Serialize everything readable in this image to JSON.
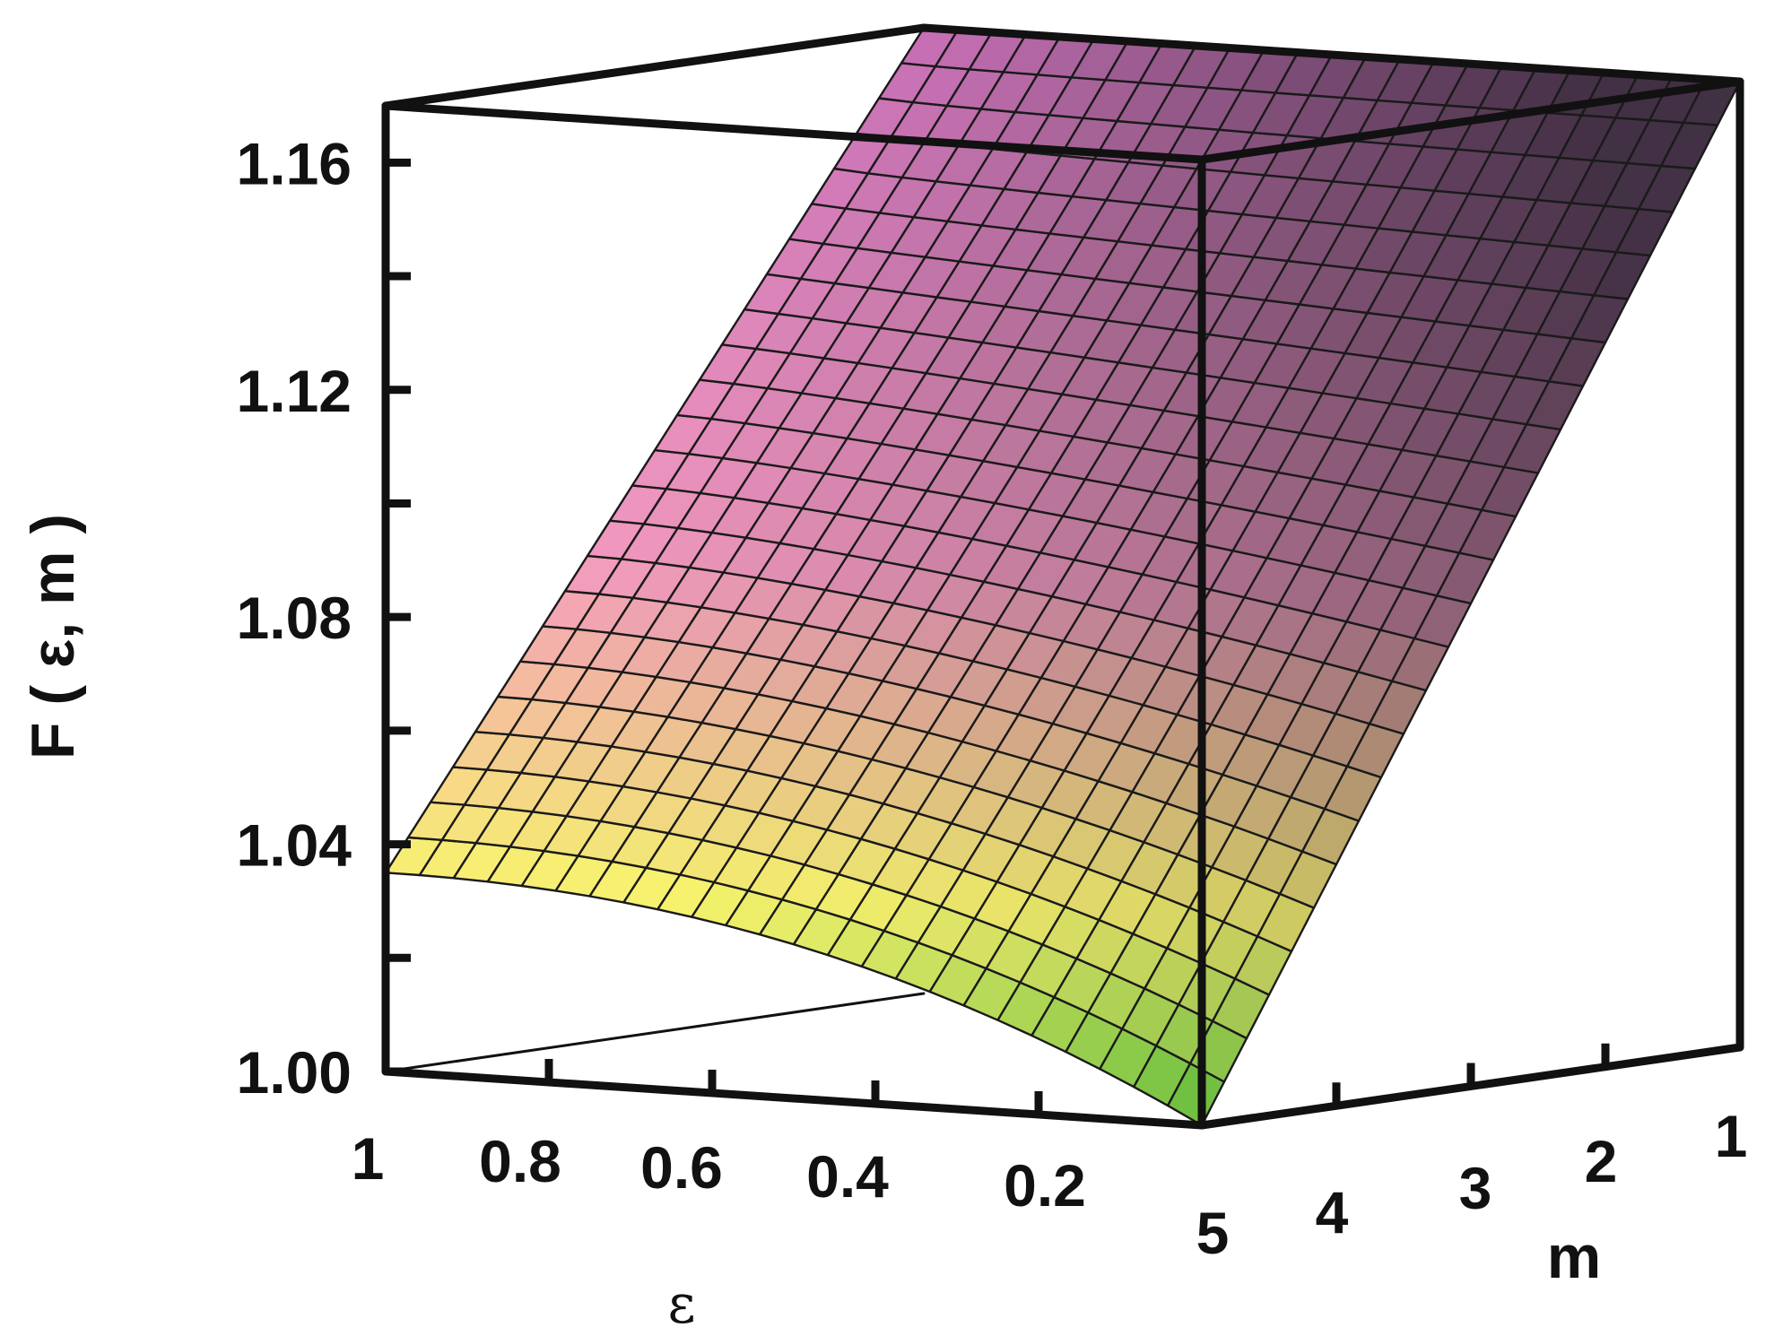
{
  "chart_data": {
    "type": "surface3d",
    "title": "",
    "zlabel": "F ( ε, m )",
    "xlabel": "ε",
    "ylabel": "m",
    "x_ticks": [
      "1",
      "0.8",
      "0.6",
      "0.4",
      "0.2"
    ],
    "x_tick_values": [
      1,
      0.8,
      0.6,
      0.4,
      0.2
    ],
    "y_ticks": [
      "5",
      "4",
      "3",
      "2",
      "1"
    ],
    "y_tick_values": [
      5,
      4,
      3,
      2,
      1
    ],
    "z_ticks": [
      "1.00",
      "1.04",
      "1.08",
      "1.12",
      "1.16"
    ],
    "z_tick_values": [
      1.0,
      1.04,
      1.08,
      1.12,
      1.16
    ],
    "xlim": [
      0,
      1
    ],
    "ylim": [
      1,
      5
    ],
    "zlim": [
      1.0,
      1.17
    ],
    "grid_steps": 24,
    "surface_samples": [
      {
        "epsilon": 0,
        "m": 1,
        "F": 1.17
      },
      {
        "epsilon": 1,
        "m": 1,
        "F": 1.17
      },
      {
        "epsilon": 0,
        "m": 5,
        "F": 1.0
      },
      {
        "epsilon": 1,
        "m": 5,
        "F": 1.035
      }
    ],
    "colormap": {
      "low": "#5dbb3a",
      "mid_low": "#f8f46e",
      "mid": "#f49ac0",
      "high": "#c870b8",
      "shadow": "#2a2430"
    }
  }
}
